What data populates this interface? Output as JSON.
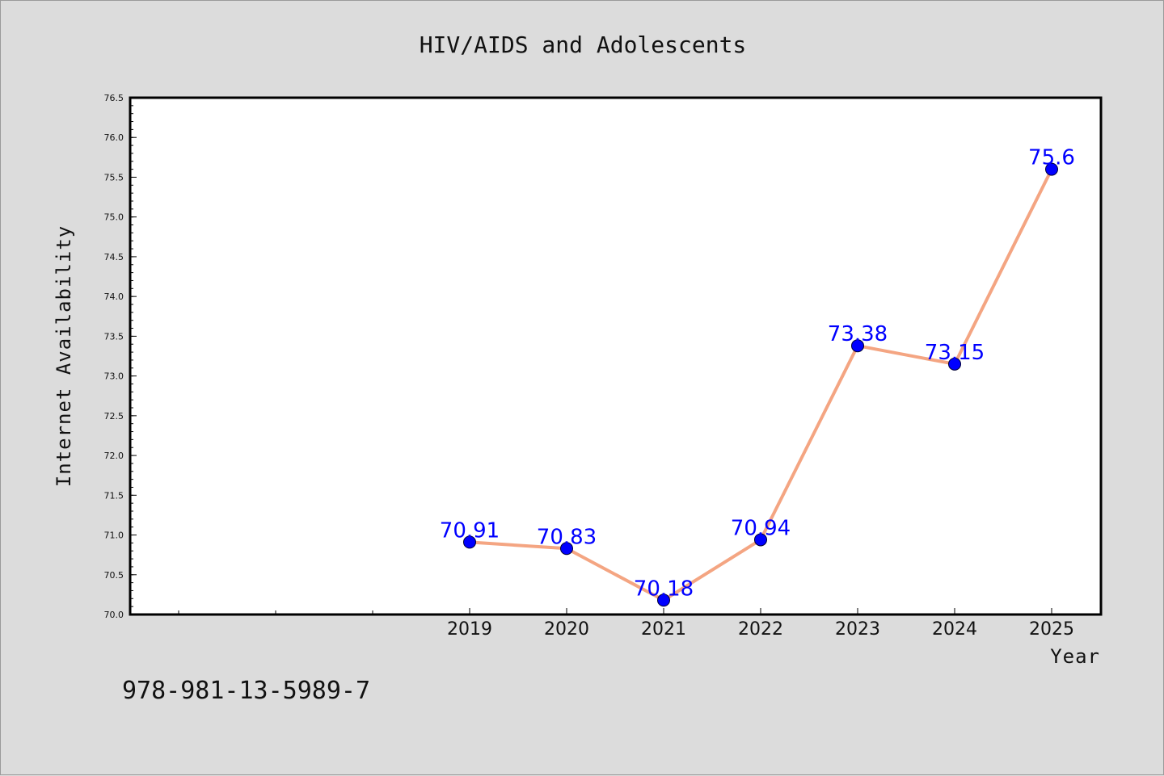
{
  "chart_data": {
    "type": "line",
    "title": "HIV/AIDS and Adolescents",
    "xlabel": "Year",
    "ylabel": "Internet Availability",
    "categories": [
      "2019",
      "2020",
      "2021",
      "2022",
      "2023",
      "2024",
      "2025"
    ],
    "values": [
      70.91,
      70.83,
      70.18,
      70.94,
      73.38,
      73.15,
      75.6
    ],
    "data_labels": [
      "70.91",
      "70.83",
      "70.18",
      "70.94",
      "73.38",
      "73.15",
      "75.6"
    ],
    "ylim": [
      70.0,
      76.5
    ],
    "y_ticks": [
      "70.0",
      "70.5",
      "71.0",
      "71.5",
      "72.0",
      "72.5",
      "73.0",
      "73.5",
      "74.0",
      "74.5",
      "75.0",
      "75.5",
      "76.0",
      "76.5"
    ],
    "line_color": "#f4a582",
    "marker_color": "#0000ff",
    "label_color": "#0000ff",
    "grid": false,
    "legend": "none"
  },
  "footer_text": "978-981-13-5989-7"
}
